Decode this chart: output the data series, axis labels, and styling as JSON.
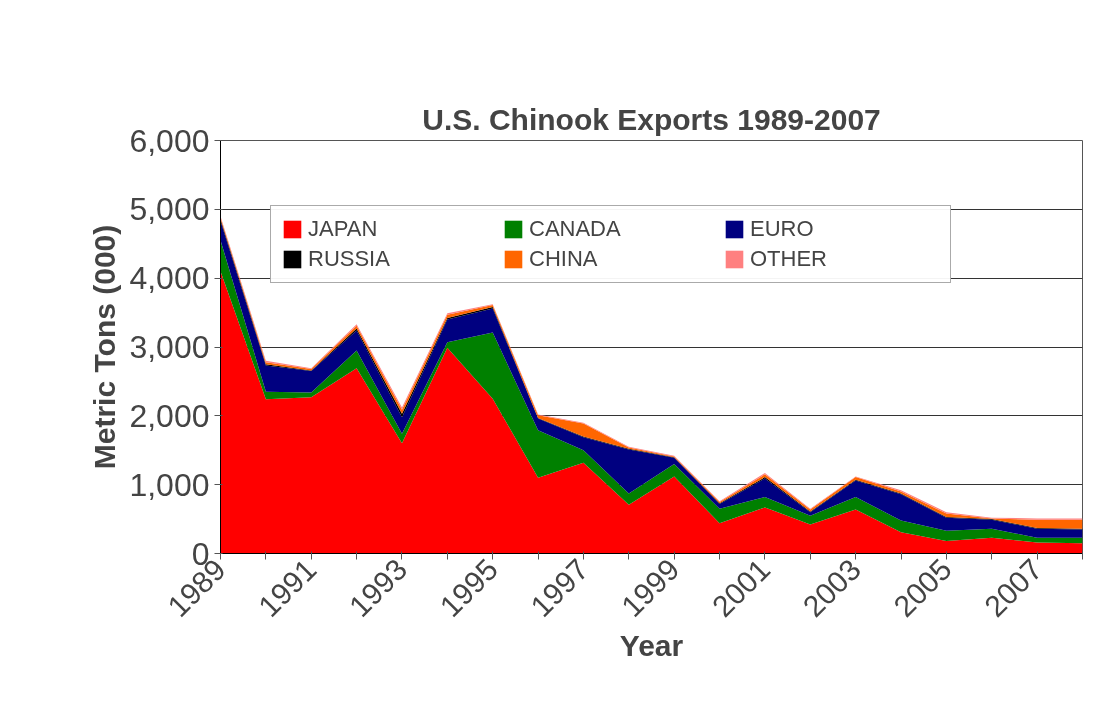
{
  "chart_data": {
    "type": "area",
    "stacked": true,
    "title": "U.S. Chinook Exports 1989-2007",
    "xlabel": "Year",
    "ylabel": "Metric Tons (000)",
    "categories": [
      "1989",
      null,
      "1991",
      null,
      "1993",
      null,
      "1995",
      null,
      "1997",
      null,
      "1999",
      null,
      "2001",
      null,
      "2003",
      null,
      "2005",
      null,
      "2007",
      null
    ],
    "series": [
      {
        "name": "JAPAN",
        "color": "#ff0000",
        "values": [
          4100,
          2240,
          2270,
          2690,
          1600,
          2990,
          2250,
          1100,
          1320,
          710,
          1120,
          440,
          670,
          420,
          640,
          310,
          180,
          230,
          160,
          150
        ]
      },
      {
        "name": "CANADA",
        "color": "#008000",
        "values": [
          450,
          110,
          70,
          260,
          140,
          80,
          960,
          690,
          180,
          160,
          180,
          210,
          150,
          130,
          180,
          170,
          150,
          130,
          70,
          80
        ]
      },
      {
        "name": "EURO",
        "color": "#000080",
        "values": [
          280,
          380,
          310,
          290,
          240,
          330,
          350,
          170,
          190,
          640,
          90,
          70,
          270,
          50,
          240,
          380,
          190,
          130,
          130,
          120
        ]
      },
      {
        "name": "RUSSIA",
        "color": "#000000",
        "values": [
          30,
          20,
          10,
          30,
          50,
          20,
          20,
          10,
          10,
          10,
          10,
          10,
          20,
          10,
          10,
          10,
          10,
          10,
          10,
          10
        ]
      },
      {
        "name": "CHINA",
        "color": "#ff6600",
        "values": [
          20,
          30,
          20,
          40,
          60,
          50,
          30,
          40,
          190,
          20,
          10,
          20,
          40,
          30,
          40,
          30,
          50,
          10,
          120,
          130
        ]
      },
      {
        "name": "OTHER",
        "color": "#ff8080",
        "values": [
          20,
          20,
          10,
          20,
          30,
          20,
          10,
          10,
          10,
          10,
          10,
          10,
          20,
          10,
          10,
          20,
          20,
          10,
          20,
          20
        ]
      }
    ],
    "ylim": [
      0,
      6000
    ],
    "yticks": [
      0,
      {
        "value": 1000,
        "label": "1,000"
      },
      {
        "value": 2000,
        "label": "2,000"
      },
      {
        "value": 3000,
        "label": "3,000"
      },
      {
        "value": 4000,
        "label": "4,000"
      },
      {
        "value": 5000,
        "label": "5,000"
      },
      {
        "value": 6000,
        "label": "6,000"
      }
    ],
    "grid": "y",
    "legend": "top"
  }
}
